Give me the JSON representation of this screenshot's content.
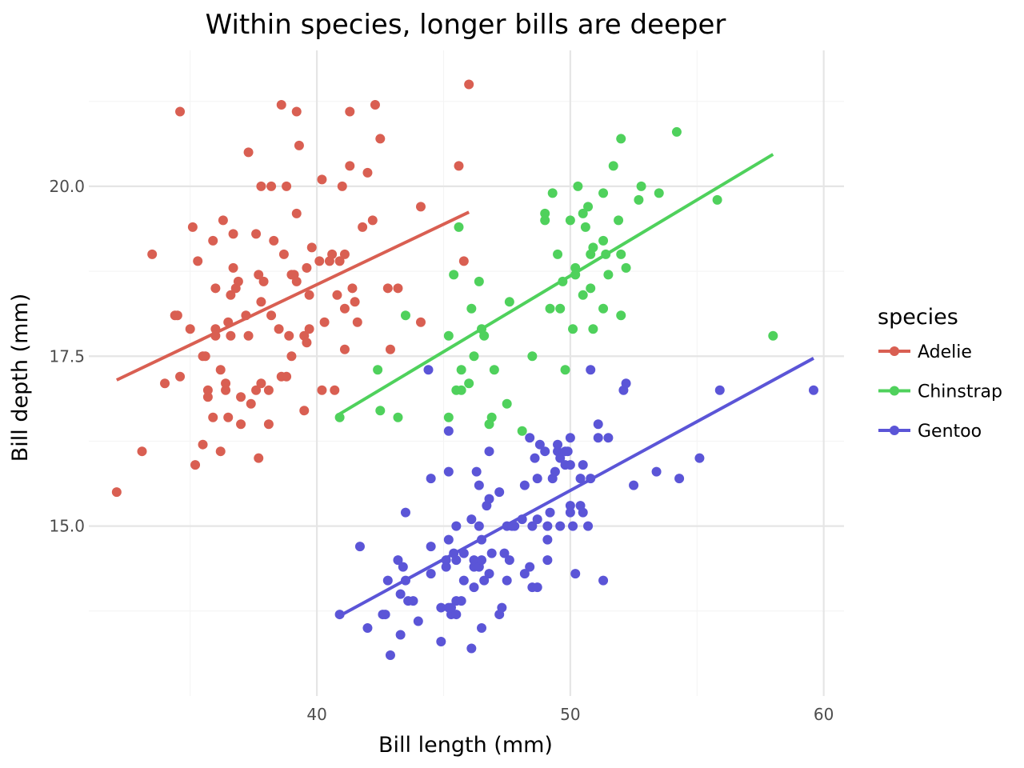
{
  "chart_data": {
    "type": "scatter",
    "title": "Within species, longer bills are deeper",
    "xlabel": "Bill length (mm)",
    "ylabel": "Bill depth (mm)",
    "xlim": [
      31.0,
      60.8
    ],
    "ylim": [
      12.5,
      22.0
    ],
    "x_ticks": [
      40,
      50,
      60
    ],
    "x_tick_labels": [
      "40",
      "50",
      "60"
    ],
    "y_ticks": [
      15.0,
      17.5,
      20.0
    ],
    "y_tick_labels": [
      "15.0",
      "17.5",
      "20.0"
    ],
    "grid": true,
    "legend": {
      "title": "species",
      "position": "right"
    },
    "series": [
      {
        "name": "Adelie",
        "color": "#d95f52",
        "trend": {
          "x": [
            32.1,
            46.0
          ],
          "y": [
            17.15,
            19.62
          ]
        },
        "points": [
          [
            32.1,
            15.5
          ],
          [
            33.1,
            16.1
          ],
          [
            33.5,
            19.0
          ],
          [
            34.0,
            17.1
          ],
          [
            34.4,
            18.1
          ],
          [
            34.5,
            18.1
          ],
          [
            34.6,
            21.1
          ],
          [
            34.6,
            17.2
          ],
          [
            35.0,
            17.9
          ],
          [
            35.1,
            19.4
          ],
          [
            35.2,
            15.9
          ],
          [
            35.3,
            18.9
          ],
          [
            35.5,
            17.5
          ],
          [
            35.5,
            16.2
          ],
          [
            35.6,
            17.5
          ],
          [
            35.7,
            16.9
          ],
          [
            35.7,
            17.0
          ],
          [
            35.9,
            16.6
          ],
          [
            35.9,
            19.2
          ],
          [
            36.0,
            18.5
          ],
          [
            36.0,
            17.9
          ],
          [
            36.0,
            17.8
          ],
          [
            36.2,
            16.1
          ],
          [
            36.2,
            17.3
          ],
          [
            36.3,
            19.5
          ],
          [
            36.4,
            17.0
          ],
          [
            36.4,
            17.1
          ],
          [
            36.5,
            16.6
          ],
          [
            36.5,
            18.0
          ],
          [
            36.6,
            17.8
          ],
          [
            36.6,
            18.4
          ],
          [
            36.7,
            19.3
          ],
          [
            36.7,
            18.8
          ],
          [
            36.8,
            18.5
          ],
          [
            36.9,
            18.6
          ],
          [
            37.0,
            16.9
          ],
          [
            37.0,
            16.5
          ],
          [
            37.2,
            18.1
          ],
          [
            37.3,
            17.8
          ],
          [
            37.3,
            20.5
          ],
          [
            37.4,
            16.8
          ],
          [
            37.6,
            19.3
          ],
          [
            37.6,
            17.0
          ],
          [
            37.7,
            16.0
          ],
          [
            37.7,
            18.7
          ],
          [
            37.8,
            17.1
          ],
          [
            37.8,
            18.3
          ],
          [
            37.8,
            20.0
          ],
          [
            37.9,
            18.6
          ],
          [
            38.1,
            16.5
          ],
          [
            38.1,
            17.0
          ],
          [
            38.2,
            18.1
          ],
          [
            38.2,
            20.0
          ],
          [
            38.3,
            19.2
          ],
          [
            38.5,
            17.9
          ],
          [
            38.6,
            17.2
          ],
          [
            38.6,
            21.2
          ],
          [
            38.7,
            19.0
          ],
          [
            38.8,
            17.2
          ],
          [
            38.8,
            20.0
          ],
          [
            38.9,
            17.8
          ],
          [
            39.0,
            17.5
          ],
          [
            39.0,
            18.7
          ],
          [
            39.1,
            18.7
          ],
          [
            39.2,
            18.6
          ],
          [
            39.2,
            19.6
          ],
          [
            39.2,
            21.1
          ],
          [
            39.3,
            20.6
          ],
          [
            39.5,
            16.7
          ],
          [
            39.5,
            17.8
          ],
          [
            39.6,
            17.7
          ],
          [
            39.6,
            18.8
          ],
          [
            39.7,
            18.4
          ],
          [
            39.7,
            17.9
          ],
          [
            39.8,
            19.1
          ],
          [
            40.1,
            18.9
          ],
          [
            40.2,
            17.0
          ],
          [
            40.2,
            20.1
          ],
          [
            40.3,
            18.0
          ],
          [
            40.5,
            18.9
          ],
          [
            40.6,
            19.0
          ],
          [
            40.7,
            17.0
          ],
          [
            40.8,
            18.4
          ],
          [
            40.9,
            18.9
          ],
          [
            41.0,
            20.0
          ],
          [
            41.1,
            19.0
          ],
          [
            41.1,
            18.2
          ],
          [
            41.1,
            17.6
          ],
          [
            41.3,
            21.1
          ],
          [
            41.3,
            20.3
          ],
          [
            41.4,
            18.5
          ],
          [
            41.5,
            18.3
          ],
          [
            41.6,
            18.0
          ],
          [
            41.8,
            19.4
          ],
          [
            42.0,
            20.2
          ],
          [
            42.2,
            19.5
          ],
          [
            42.3,
            21.2
          ],
          [
            42.5,
            20.7
          ],
          [
            42.8,
            18.5
          ],
          [
            42.9,
            17.6
          ],
          [
            43.2,
            18.5
          ],
          [
            44.1,
            18.0
          ],
          [
            44.1,
            19.7
          ],
          [
            45.6,
            20.3
          ],
          [
            45.8,
            18.9
          ],
          [
            46.0,
            21.5
          ]
        ]
      },
      {
        "name": "Chinstrap",
        "color": "#4fd15c",
        "trend": {
          "x": [
            40.9,
            58.0
          ],
          "y": [
            16.65,
            20.47
          ]
        },
        "points": [
          [
            40.9,
            16.6
          ],
          [
            42.4,
            17.3
          ],
          [
            42.5,
            16.7
          ],
          [
            43.2,
            16.6
          ],
          [
            43.5,
            18.1
          ],
          [
            45.2,
            16.6
          ],
          [
            45.2,
            17.8
          ],
          [
            45.4,
            18.7
          ],
          [
            45.5,
            17.0
          ],
          [
            45.6,
            19.4
          ],
          [
            45.7,
            17.0
          ],
          [
            45.7,
            17.3
          ],
          [
            46.0,
            17.1
          ],
          [
            46.1,
            18.2
          ],
          [
            46.2,
            17.5
          ],
          [
            46.4,
            18.6
          ],
          [
            46.5,
            17.9
          ],
          [
            46.6,
            17.8
          ],
          [
            46.8,
            16.5
          ],
          [
            46.9,
            16.6
          ],
          [
            47.0,
            17.3
          ],
          [
            47.5,
            16.8
          ],
          [
            47.6,
            18.3
          ],
          [
            48.1,
            16.4
          ],
          [
            48.5,
            17.5
          ],
          [
            49.0,
            19.5
          ],
          [
            49.0,
            19.6
          ],
          [
            49.2,
            18.2
          ],
          [
            49.3,
            19.9
          ],
          [
            49.5,
            19.0
          ],
          [
            49.6,
            18.2
          ],
          [
            49.7,
            18.6
          ],
          [
            49.8,
            17.3
          ],
          [
            50.0,
            19.5
          ],
          [
            50.1,
            17.9
          ],
          [
            50.2,
            18.8
          ],
          [
            50.2,
            18.7
          ],
          [
            50.3,
            20.0
          ],
          [
            50.5,
            18.4
          ],
          [
            50.5,
            19.6
          ],
          [
            50.6,
            19.4
          ],
          [
            50.7,
            19.7
          ],
          [
            50.8,
            18.5
          ],
          [
            50.8,
            19.0
          ],
          [
            50.9,
            17.9
          ],
          [
            50.9,
            19.1
          ],
          [
            51.3,
            18.2
          ],
          [
            51.3,
            19.2
          ],
          [
            51.3,
            19.9
          ],
          [
            51.4,
            19.0
          ],
          [
            51.5,
            18.7
          ],
          [
            51.7,
            20.3
          ],
          [
            51.9,
            19.5
          ],
          [
            52.0,
            18.1
          ],
          [
            52.0,
            19.0
          ],
          [
            52.0,
            20.7
          ],
          [
            52.2,
            18.8
          ],
          [
            52.7,
            19.8
          ],
          [
            52.8,
            20.0
          ],
          [
            53.5,
            19.9
          ],
          [
            54.2,
            20.8
          ],
          [
            55.8,
            19.8
          ],
          [
            58.0,
            17.8
          ]
        ]
      },
      {
        "name": "Gentoo",
        "color": "#5b55d7",
        "trend": {
          "x": [
            40.9,
            59.6
          ],
          "y": [
            13.68,
            17.47
          ]
        },
        "points": [
          [
            40.9,
            13.7
          ],
          [
            41.7,
            14.7
          ],
          [
            42.0,
            13.5
          ],
          [
            42.6,
            13.7
          ],
          [
            42.7,
            13.7
          ],
          [
            42.8,
            14.2
          ],
          [
            42.9,
            13.1
          ],
          [
            43.2,
            14.5
          ],
          [
            43.3,
            13.4
          ],
          [
            43.3,
            14.0
          ],
          [
            43.4,
            14.4
          ],
          [
            43.5,
            14.2
          ],
          [
            43.5,
            15.2
          ],
          [
            43.6,
            13.9
          ],
          [
            43.8,
            13.9
          ],
          [
            44.0,
            13.6
          ],
          [
            44.4,
            17.3
          ],
          [
            44.5,
            14.3
          ],
          [
            44.5,
            14.7
          ],
          [
            44.5,
            15.7
          ],
          [
            44.9,
            13.3
          ],
          [
            44.9,
            13.8
          ],
          [
            45.1,
            14.4
          ],
          [
            45.1,
            14.5
          ],
          [
            45.2,
            13.8
          ],
          [
            45.2,
            14.8
          ],
          [
            45.2,
            15.8
          ],
          [
            45.2,
            16.4
          ],
          [
            45.3,
            13.7
          ],
          [
            45.3,
            13.8
          ],
          [
            45.4,
            14.6
          ],
          [
            45.5,
            13.7
          ],
          [
            45.5,
            13.9
          ],
          [
            45.5,
            14.5
          ],
          [
            45.5,
            15.0
          ],
          [
            45.7,
            13.9
          ],
          [
            45.8,
            14.2
          ],
          [
            45.8,
            14.6
          ],
          [
            46.1,
            13.2
          ],
          [
            46.1,
            15.1
          ],
          [
            46.2,
            14.1
          ],
          [
            46.2,
            14.4
          ],
          [
            46.2,
            14.5
          ],
          [
            46.3,
            15.8
          ],
          [
            46.4,
            14.4
          ],
          [
            46.4,
            15.0
          ],
          [
            46.4,
            15.6
          ],
          [
            46.5,
            13.5
          ],
          [
            46.5,
            14.5
          ],
          [
            46.5,
            14.8
          ],
          [
            46.6,
            14.2
          ],
          [
            46.7,
            15.3
          ],
          [
            46.8,
            14.3
          ],
          [
            46.8,
            15.4
          ],
          [
            46.8,
            16.1
          ],
          [
            46.9,
            14.6
          ],
          [
            47.2,
            13.7
          ],
          [
            47.2,
            15.5
          ],
          [
            47.3,
            13.8
          ],
          [
            47.4,
            14.6
          ],
          [
            47.5,
            14.2
          ],
          [
            47.5,
            15.0
          ],
          [
            47.6,
            14.5
          ],
          [
            47.7,
            15.0
          ],
          [
            47.8,
            15.0
          ],
          [
            48.1,
            15.1
          ],
          [
            48.2,
            14.3
          ],
          [
            48.2,
            15.6
          ],
          [
            48.4,
            14.4
          ],
          [
            48.4,
            16.3
          ],
          [
            48.5,
            14.1
          ],
          [
            48.5,
            15.0
          ],
          [
            48.6,
            16.0
          ],
          [
            48.7,
            14.1
          ],
          [
            48.7,
            15.1
          ],
          [
            48.7,
            15.7
          ],
          [
            48.8,
            16.2
          ],
          [
            49.0,
            16.1
          ],
          [
            49.1,
            14.5
          ],
          [
            49.1,
            14.8
          ],
          [
            49.1,
            15.0
          ],
          [
            49.2,
            15.2
          ],
          [
            49.3,
            15.7
          ],
          [
            49.4,
            15.8
          ],
          [
            49.5,
            16.1
          ],
          [
            49.5,
            16.2
          ],
          [
            49.6,
            15.0
          ],
          [
            49.6,
            16.0
          ],
          [
            49.8,
            15.9
          ],
          [
            49.8,
            16.1
          ],
          [
            49.9,
            16.1
          ],
          [
            50.0,
            15.2
          ],
          [
            50.0,
            15.3
          ],
          [
            50.0,
            15.9
          ],
          [
            50.0,
            16.3
          ],
          [
            50.1,
            15.0
          ],
          [
            50.2,
            14.3
          ],
          [
            50.4,
            15.3
          ],
          [
            50.4,
            15.7
          ],
          [
            50.5,
            15.2
          ],
          [
            50.5,
            15.9
          ],
          [
            50.7,
            15.0
          ],
          [
            50.8,
            15.7
          ],
          [
            50.8,
            17.3
          ],
          [
            51.1,
            16.3
          ],
          [
            51.1,
            16.5
          ],
          [
            51.3,
            14.2
          ],
          [
            51.5,
            16.3
          ],
          [
            52.1,
            17.0
          ],
          [
            52.2,
            17.1
          ],
          [
            52.5,
            15.6
          ],
          [
            53.4,
            15.8
          ],
          [
            54.3,
            15.7
          ],
          [
            55.1,
            16.0
          ],
          [
            55.9,
            17.0
          ],
          [
            59.6,
            17.0
          ]
        ]
      }
    ]
  }
}
